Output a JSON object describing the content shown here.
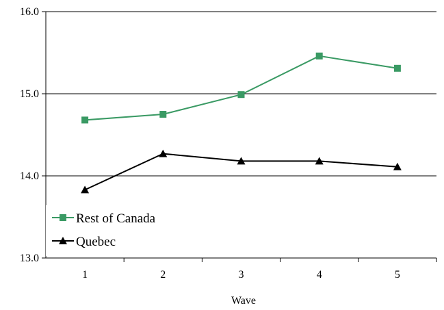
{
  "chart_data": {
    "type": "line",
    "title": "",
    "xlabel": "Wave",
    "ylabel": "",
    "categories": [
      "1",
      "2",
      "3",
      "4",
      "5"
    ],
    "ylim": [
      13.0,
      16.0
    ],
    "yticks": [
      13.0,
      14.0,
      15.0,
      16.0
    ],
    "ytick_labels": [
      "13.0",
      "14.0",
      "15.0",
      "16.0"
    ],
    "grid": "horizontal",
    "legend_position": "bottom-left",
    "series": [
      {
        "name": "Rest of Canada",
        "marker": "square",
        "color": "#3a9a64",
        "values": [
          14.68,
          14.75,
          14.99,
          15.46,
          15.31
        ]
      },
      {
        "name": "Quebec",
        "marker": "triangle",
        "color": "#000000",
        "values": [
          13.83,
          14.27,
          14.18,
          14.18,
          14.11
        ]
      }
    ]
  }
}
